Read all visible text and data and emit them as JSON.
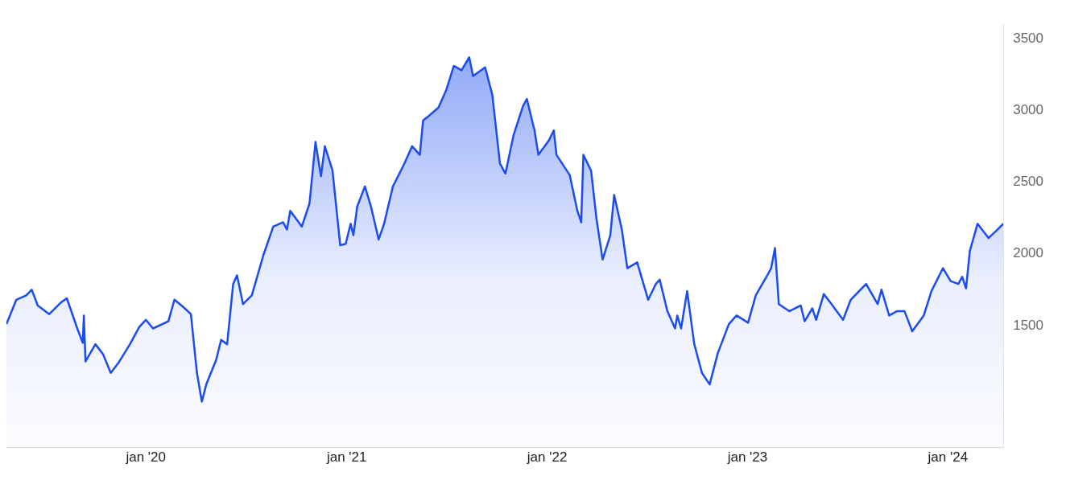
{
  "chart_data": {
    "type": "area",
    "xlim": [
      "2019-04-22",
      "2024-04-11"
    ],
    "ylim": [
      650,
      3600
    ],
    "yticks": [
      1500,
      2000,
      2500,
      3000,
      3500
    ],
    "xticks": [
      {
        "value": "2020-01-01",
        "label": "jan '20"
      },
      {
        "value": "2021-01-01",
        "label": "jan '21"
      },
      {
        "value": "2022-01-01",
        "label": "jan '22"
      },
      {
        "value": "2023-01-01",
        "label": "jan '23"
      },
      {
        "value": "2024-01-01",
        "label": "jan '24"
      }
    ],
    "grid": false,
    "legend": false,
    "marker": "none",
    "line_style": "solid",
    "series": [
      {
        "color": "#1a4cf0",
        "x": [
          "2019-04-22",
          "2019-05-10",
          "2019-05-28",
          "2019-06-07",
          "2019-06-18",
          "2019-07-09",
          "2019-07-30",
          "2019-08-10",
          "2019-08-29",
          "2019-09-08",
          "2019-09-10",
          "2019-09-13",
          "2019-10-01",
          "2019-10-15",
          "2019-10-29",
          "2019-11-12",
          "2019-12-03",
          "2019-12-20",
          "2020-01-01",
          "2020-01-14",
          "2020-02-11",
          "2020-02-22",
          "2020-03-09",
          "2020-03-23",
          "2020-04-03",
          "2020-04-12",
          "2020-04-20",
          "2020-05-08",
          "2020-05-17",
          "2020-05-28",
          "2020-06-08",
          "2020-06-15",
          "2020-06-26",
          "2020-07-12",
          "2020-08-02",
          "2020-08-20",
          "2020-09-07",
          "2020-09-14",
          "2020-09-20",
          "2020-10-11",
          "2020-10-25",
          "2020-11-05",
          "2020-11-15",
          "2020-11-22",
          "2020-12-06",
          "2020-12-20",
          "2020-12-30",
          "2021-01-08",
          "2021-01-13",
          "2021-01-20",
          "2021-02-03",
          "2021-02-14",
          "2021-02-28",
          "2021-03-10",
          "2021-03-26",
          "2021-04-16",
          "2021-04-30",
          "2021-05-14",
          "2021-05-20",
          "2021-05-30",
          "2021-06-17",
          "2021-07-01",
          "2021-07-15",
          "2021-07-29",
          "2021-08-12",
          "2021-08-19",
          "2021-09-10",
          "2021-09-23",
          "2021-10-07",
          "2021-10-17",
          "2021-11-01",
          "2021-11-18",
          "2021-11-25",
          "2021-12-09",
          "2021-12-16",
          "2022-01-04",
          "2022-01-13",
          "2022-01-18",
          "2022-02-11",
          "2022-02-25",
          "2022-03-04",
          "2022-03-08",
          "2022-03-22",
          "2022-04-01",
          "2022-04-12",
          "2022-04-26",
          "2022-05-03",
          "2022-05-17",
          "2022-05-27",
          "2022-06-14",
          "2022-07-04",
          "2022-07-18",
          "2022-07-25",
          "2022-08-08",
          "2022-08-22",
          "2022-08-26",
          "2022-09-02",
          "2022-09-13",
          "2022-09-26",
          "2022-10-10",
          "2022-10-24",
          "2022-11-08",
          "2022-11-28",
          "2022-12-12",
          "2023-01-02",
          "2023-01-16",
          "2023-02-06",
          "2023-02-13",
          "2023-02-20",
          "2023-02-27",
          "2023-03-18",
          "2023-04-08",
          "2023-04-15",
          "2023-04-29",
          "2023-05-06",
          "2023-05-20",
          "2023-06-03",
          "2023-06-24",
          "2023-07-08",
          "2023-08-05",
          "2023-08-26",
          "2023-09-02",
          "2023-09-16",
          "2023-09-30",
          "2023-10-14",
          "2023-10-28",
          "2023-11-18",
          "2023-12-02",
          "2023-12-23",
          "2024-01-06",
          "2024-01-20",
          "2024-01-27",
          "2024-02-03",
          "2024-02-10",
          "2024-02-24",
          "2024-03-15",
          "2024-03-29",
          "2024-04-11"
        ],
        "values": [
          1510,
          1680,
          1710,
          1750,
          1640,
          1580,
          1660,
          1690,
          1480,
          1380,
          1570,
          1250,
          1370,
          1300,
          1170,
          1240,
          1370,
          1490,
          1540,
          1480,
          1530,
          1680,
          1630,
          1580,
          1170,
          970,
          1090,
          1260,
          1400,
          1370,
          1790,
          1850,
          1650,
          1710,
          1990,
          2190,
          2220,
          2170,
          2300,
          2190,
          2350,
          2780,
          2540,
          2750,
          2580,
          2060,
          2070,
          2210,
          2130,
          2330,
          2470,
          2330,
          2100,
          2210,
          2470,
          2630,
          2750,
          2690,
          2930,
          2960,
          3020,
          3140,
          3310,
          3280,
          3370,
          3240,
          3300,
          3110,
          2630,
          2560,
          2830,
          3030,
          3080,
          2860,
          2690,
          2790,
          2860,
          2690,
          2550,
          2300,
          2220,
          2690,
          2580,
          2240,
          1960,
          2130,
          2410,
          2170,
          1900,
          1940,
          1680,
          1790,
          1820,
          1600,
          1480,
          1570,
          1480,
          1740,
          1370,
          1170,
          1090,
          1310,
          1510,
          1570,
          1520,
          1710,
          1850,
          1900,
          2040,
          1650,
          1600,
          1640,
          1530,
          1620,
          1540,
          1720,
          1650,
          1540,
          1680,
          1790,
          1650,
          1750,
          1570,
          1600,
          1600,
          1460,
          1570,
          1740,
          1900,
          1810,
          1790,
          1840,
          1760,
          2020,
          2210,
          2110,
          2160,
          2210
        ]
      }
    ]
  }
}
